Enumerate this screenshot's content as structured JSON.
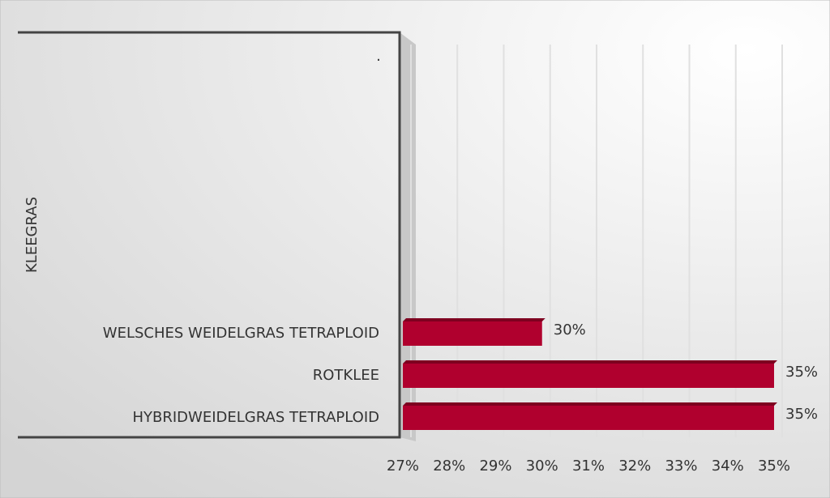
{
  "chart_data": {
    "type": "bar",
    "orientation": "horizontal",
    "group_label": "KLEEGRAS",
    "annotation": ".",
    "categories": [
      "HYBRIDWEIDELGRAS TETRAPLOID",
      "ROTKLEE",
      "WELSCHES WEIDELGRAS TETRAPLOID"
    ],
    "values": [
      35,
      35,
      30
    ],
    "value_labels": [
      "35%",
      "35%",
      "30%"
    ],
    "color": "#b0002e",
    "xlim": [
      27,
      35
    ],
    "xticks": [
      {
        "value": 27,
        "label": "27%"
      },
      {
        "value": 28,
        "label": "28%"
      },
      {
        "value": 29,
        "label": "29%"
      },
      {
        "value": 30,
        "label": "30%"
      },
      {
        "value": 31,
        "label": "31%"
      },
      {
        "value": 32,
        "label": "32%"
      },
      {
        "value": 33,
        "label": "33%"
      },
      {
        "value": 34,
        "label": "34%"
      },
      {
        "value": 35,
        "label": "35%"
      }
    ],
    "grid": true
  }
}
